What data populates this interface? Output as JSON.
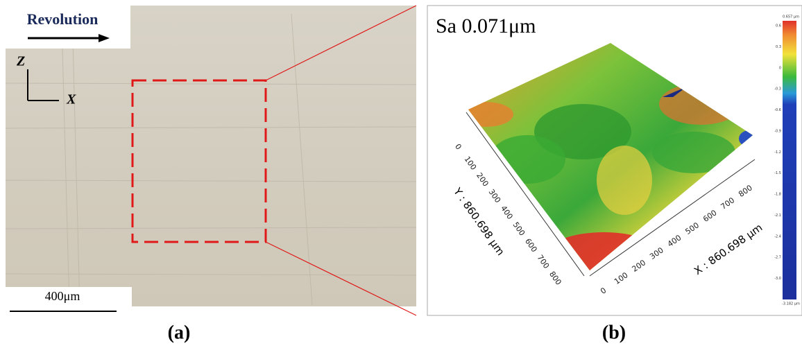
{
  "panel_a": {
    "arrow_label": "Revolution",
    "axis_z": "Z",
    "axis_x": "X",
    "scale_bar": "400μm",
    "caption": "(a)"
  },
  "panel_b": {
    "sa_label": "Sa 0.071μm",
    "caption": "(b)",
    "y_axis_title": "Y : 860.698 μm",
    "x_axis_title": "X : 860.698 μm",
    "y_ticks": [
      "0",
      "100",
      "200",
      "300",
      "400",
      "500",
      "600",
      "700",
      "800"
    ],
    "x_ticks": [
      "0",
      "100",
      "200",
      "300",
      "400",
      "500",
      "600",
      "700",
      "800"
    ],
    "colorbar_max": "0.657 μm",
    "colorbar_min": "-3.182 μm",
    "colorbar_ticks": [
      "0.6",
      "0.3",
      "0",
      "-0.3",
      "-0.6",
      "-0.9",
      "-1.2",
      "-1.5",
      "-1.8",
      "-2.1",
      "-2.4",
      "-2.7",
      "-3.0"
    ]
  }
}
